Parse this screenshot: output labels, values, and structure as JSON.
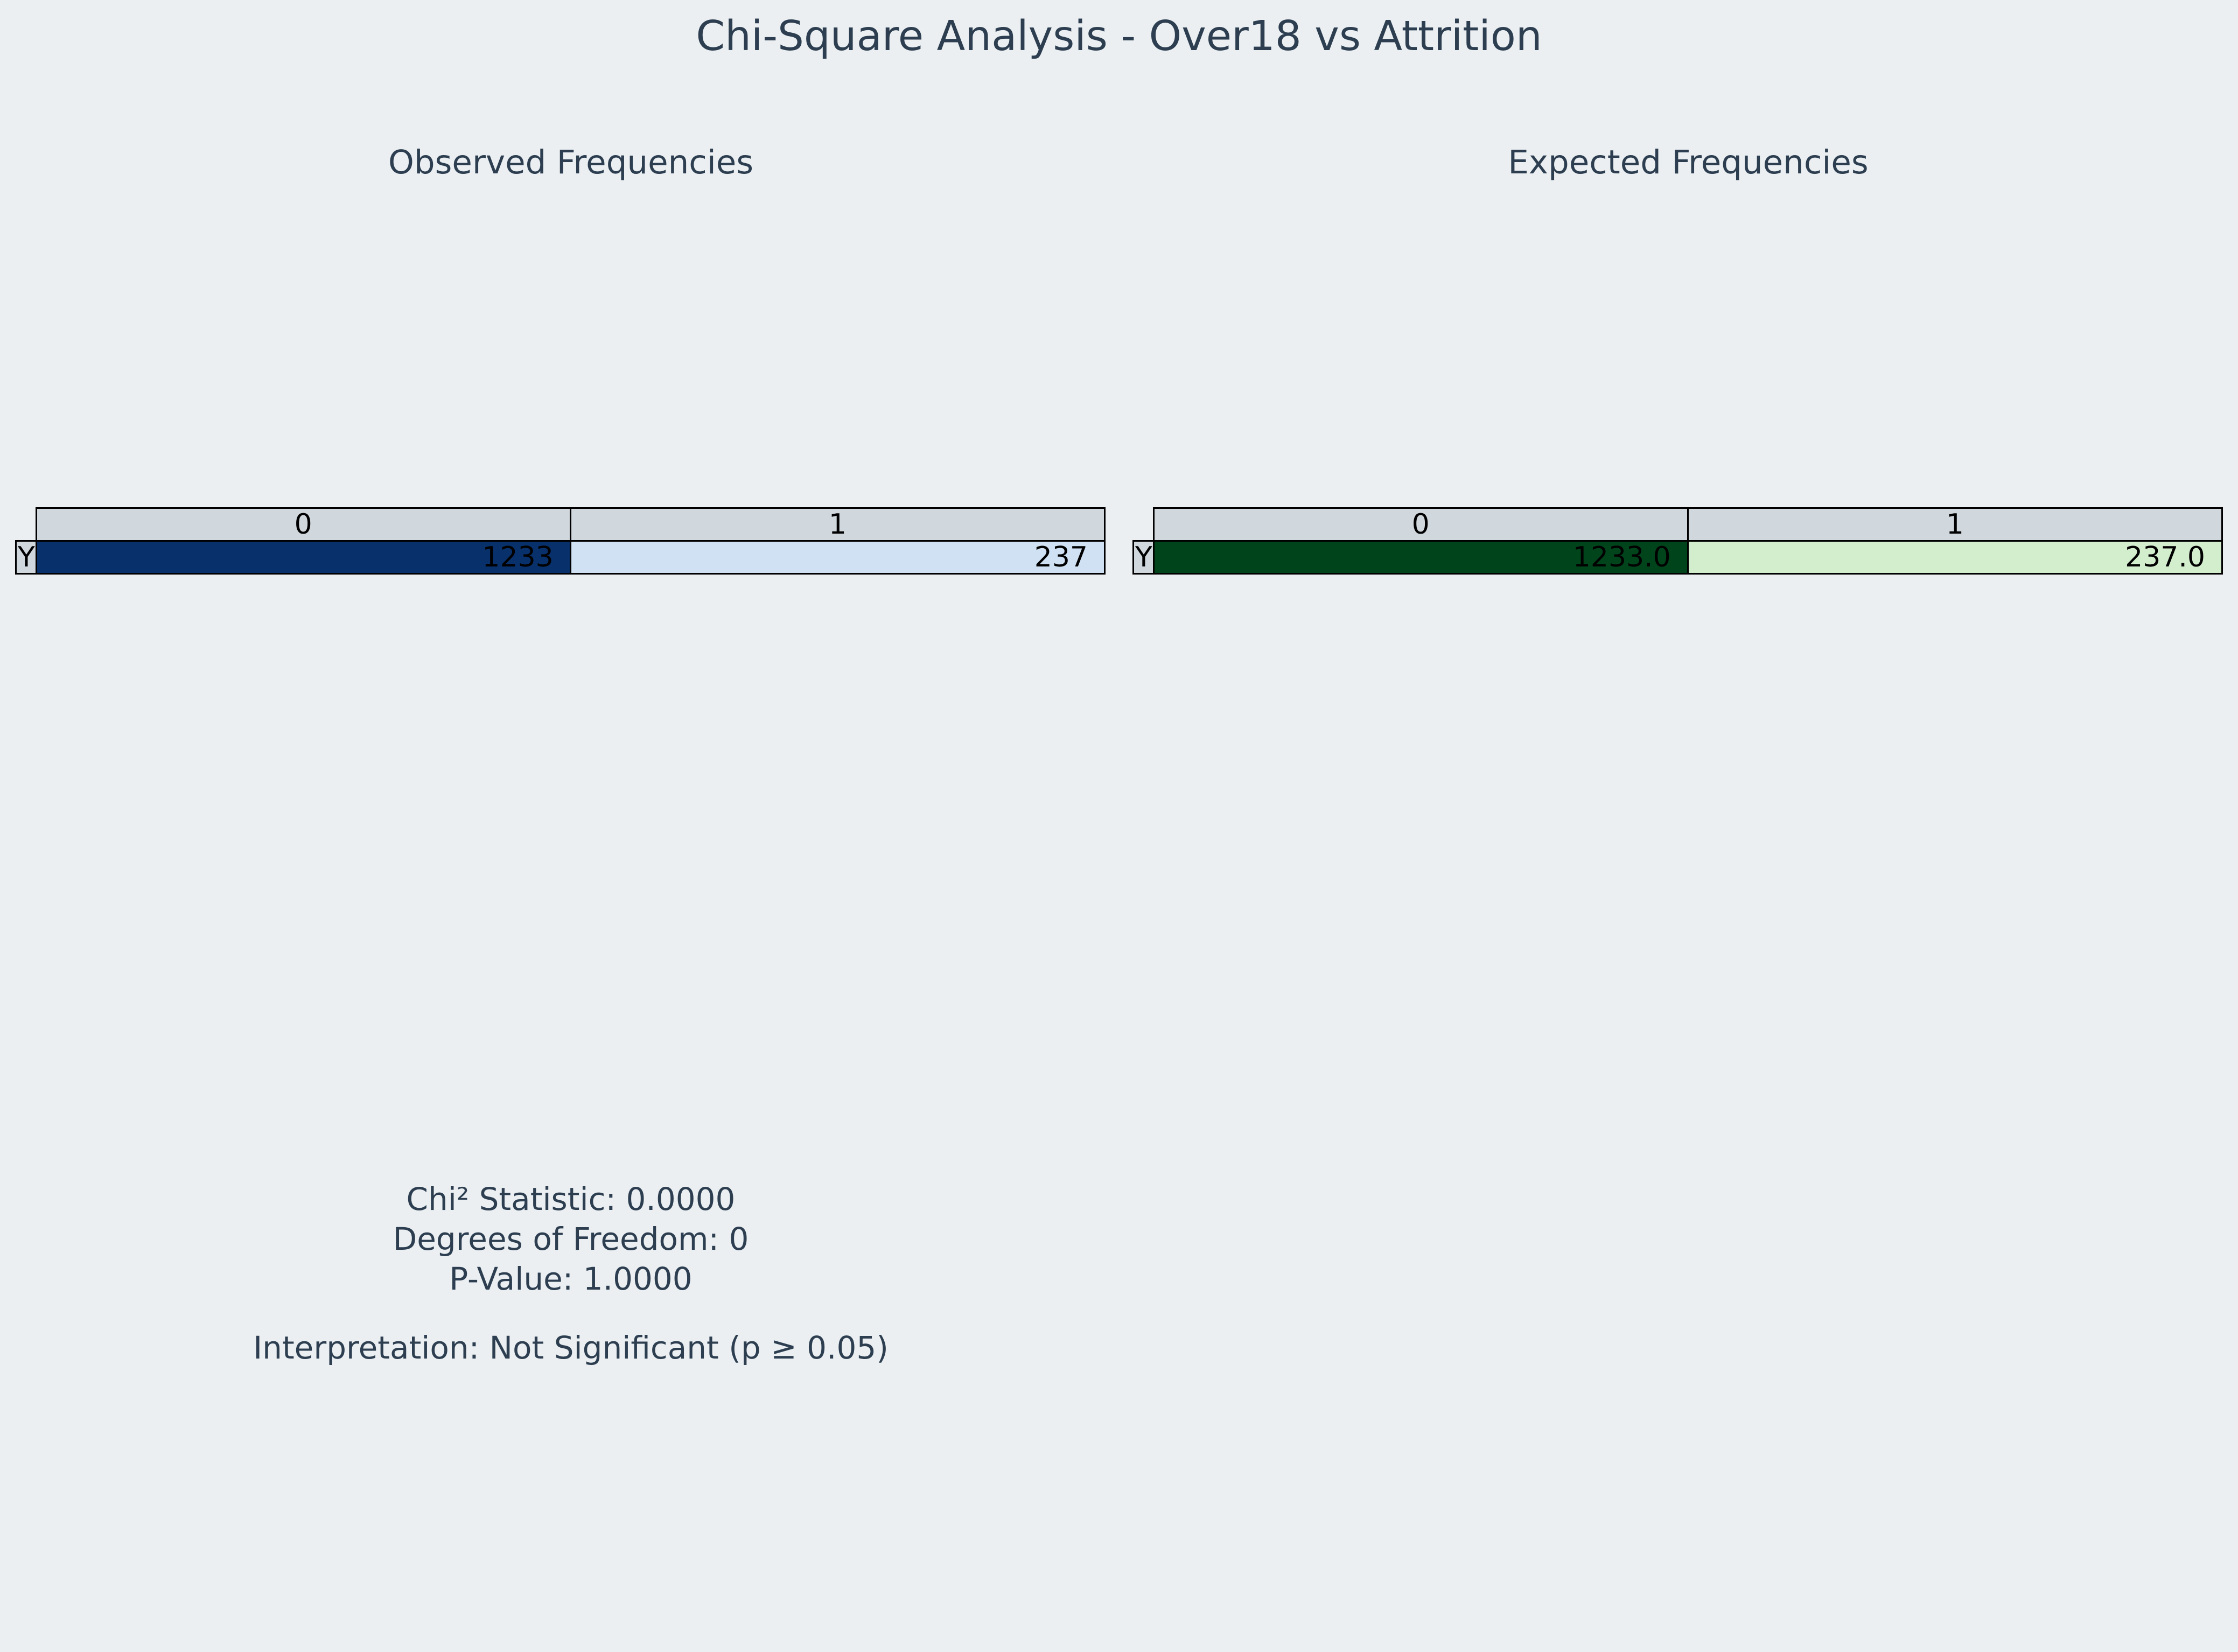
{
  "chart_data": [
    {
      "type": "table",
      "title": "Chi-Square Analysis - Over18 vs Attrition",
      "subtitle": "Observed Frequencies",
      "row_labels": [
        "Y"
      ],
      "columns": [
        "0",
        "1"
      ],
      "cells": [
        [
          "1233",
          "237"
        ]
      ],
      "values": [
        [
          1233,
          237
        ]
      ],
      "colormap": {
        "low": "#cfe1f2",
        "high": "#08306b"
      }
    },
    {
      "type": "table",
      "subtitle": "Expected Frequencies",
      "row_labels": [
        "Y"
      ],
      "columns": [
        "0",
        "1"
      ],
      "cells": [
        [
          "1233.0",
          "237.0"
        ]
      ],
      "values": [
        [
          1233.0,
          237.0
        ]
      ],
      "colormap": {
        "low": "#d3eecd",
        "high": "#00441b"
      }
    }
  ],
  "stats": {
    "chi2_label": "Chi² Statistic: 0.0000",
    "dof_label": "Degrees of Freedom: 0",
    "p_label": "P-Value: 1.0000",
    "interpretation": "Interpretation: Not Significant (p ≥ 0.05)"
  },
  "colors": {
    "background": "#ebeff2",
    "header_cell": "#d0d8de",
    "text": "#2c3e50"
  }
}
